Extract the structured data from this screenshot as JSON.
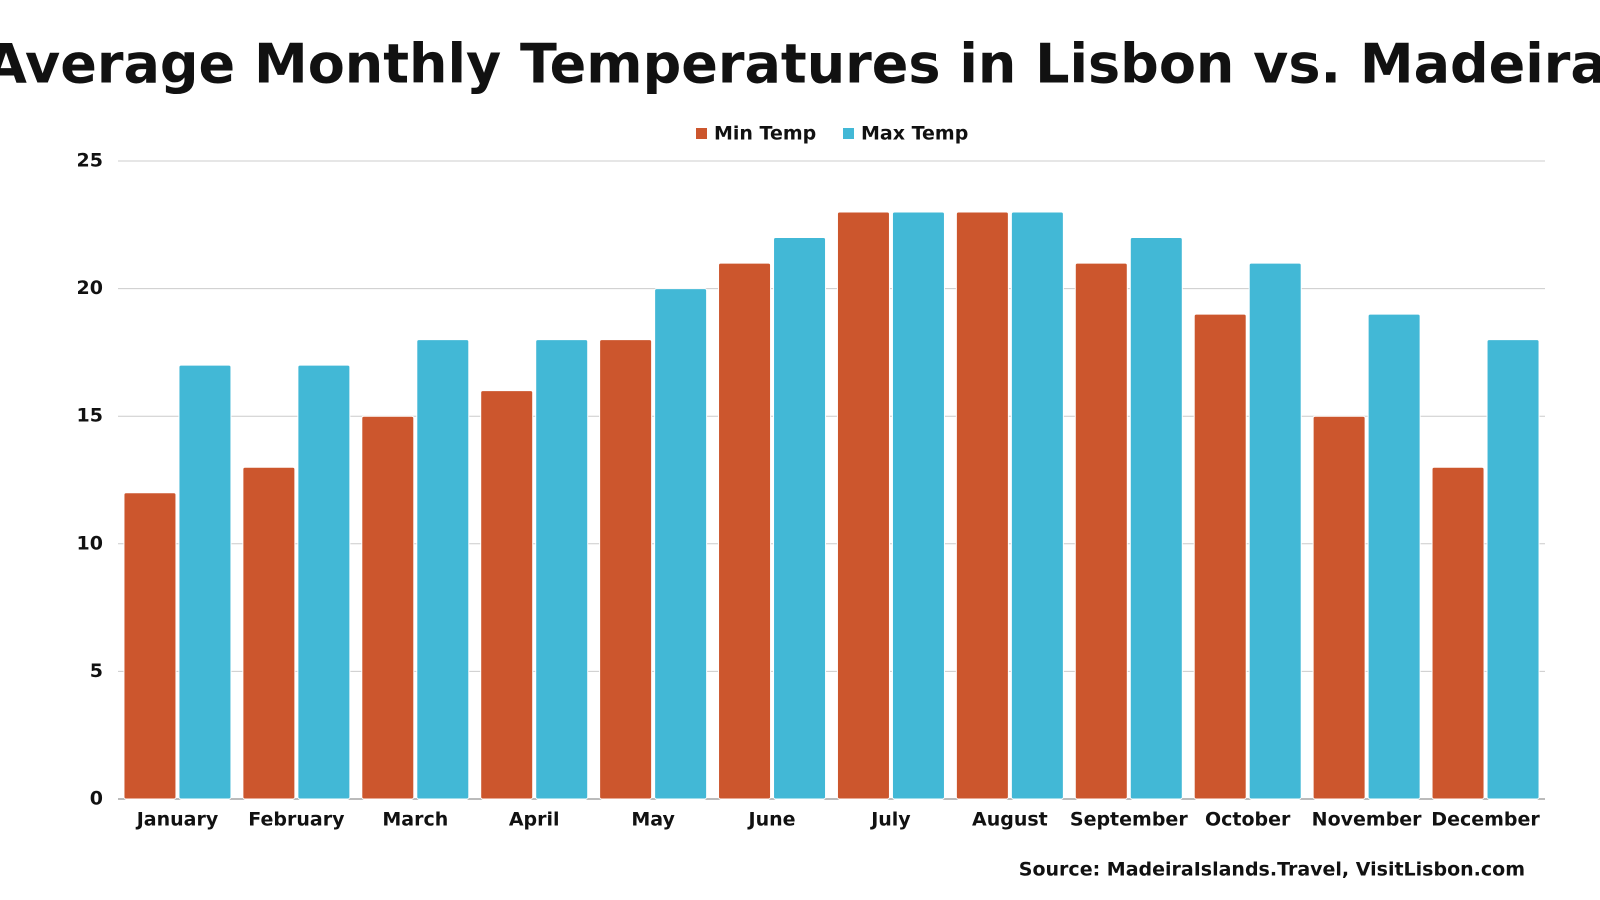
{
  "chart_data": {
    "type": "bar",
    "title": "Average Monthly Temperatures in Lisbon vs. Madeira",
    "categories": [
      "January",
      "February",
      "March",
      "April",
      "May",
      "June",
      "July",
      "August",
      "September",
      "October",
      "November",
      "December"
    ],
    "series": [
      {
        "name": "Min Temp",
        "color": "#cc562d",
        "values": [
          12,
          13,
          15,
          16,
          18,
          21,
          23,
          23,
          21,
          19,
          15,
          13
        ]
      },
      {
        "name": "Max Temp",
        "color": "#42b8d6",
        "values": [
          17,
          17,
          18,
          18,
          20,
          22,
          23,
          23,
          22,
          21,
          19,
          18
        ]
      }
    ],
    "ylim": [
      0,
      25
    ],
    "yticks": [
      0,
      5,
      10,
      15,
      20,
      25
    ],
    "grid": true,
    "legend": "top",
    "source": "Source: MadeiraIslands.Travel, VisitLisbon.com"
  }
}
